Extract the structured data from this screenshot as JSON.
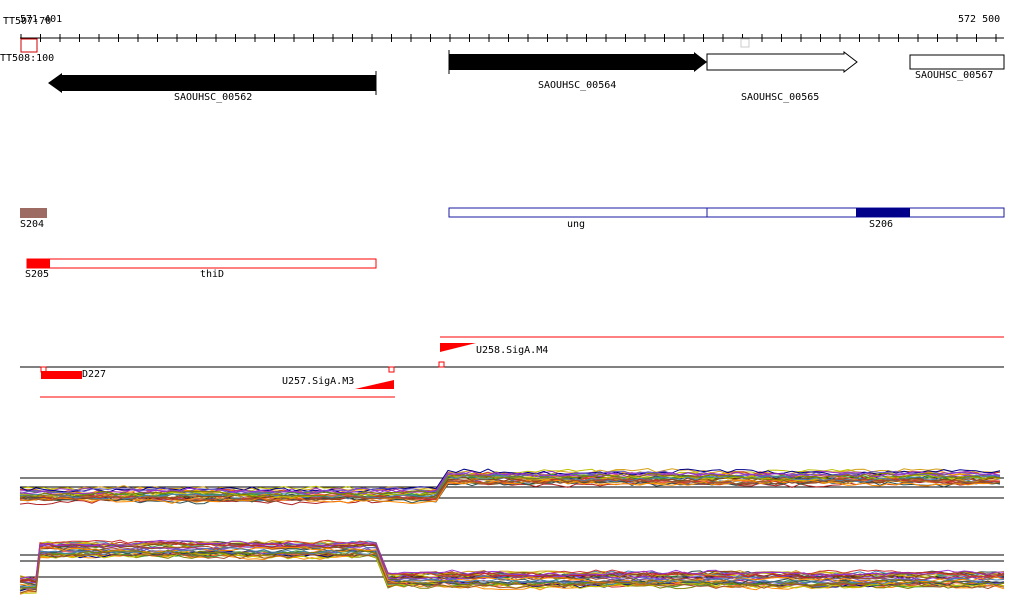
{
  "ruler": {
    "start_label": "571 401",
    "end_label": "572 500",
    "tt_top_label": "TT507:70",
    "tt_bottom_label": "TT508:100"
  },
  "genes": [
    {
      "id": "SAOUHSC_00562",
      "strand": "-",
      "style": "filled"
    },
    {
      "id": "SAOUHSC_00564",
      "strand": "+",
      "style": "filled"
    },
    {
      "id": "SAOUHSC_00565",
      "strand": "+",
      "style": "open"
    },
    {
      "id": "SAOUHSC_00567",
      "strand": "+",
      "style": "open"
    }
  ],
  "features": {
    "s204": {
      "label": "S204",
      "color": "#9e6b63"
    },
    "ung": {
      "label": "ung",
      "color": "#1a1aa0"
    },
    "s206": {
      "label": "S206",
      "color": "#00008b"
    },
    "s205": {
      "label": "S205",
      "color": "#ff0000"
    },
    "thiD": {
      "label": "thiD",
      "color": "#ff0000"
    }
  },
  "promoters": {
    "d227": {
      "label": "D227"
    },
    "u257": {
      "label": "U257.SigA.M3"
    },
    "u258": {
      "label": "U258.SigA.M4"
    }
  },
  "colors": {
    "gene_fill": "#000000",
    "feature_red": "#ff0000",
    "feature_blue": "#1a1aa0",
    "expression_palette": [
      "#3c9b3c",
      "#d4a017",
      "#8b4513",
      "#c0c000",
      "#6a5acd",
      "#cc3333",
      "#2f4f4f",
      "#ff8c00",
      "#4682b4",
      "#9932cc",
      "#808000",
      "#a0522d",
      "#00008b",
      "#b22222",
      "#556b2f",
      "#ff6347"
    ]
  }
}
